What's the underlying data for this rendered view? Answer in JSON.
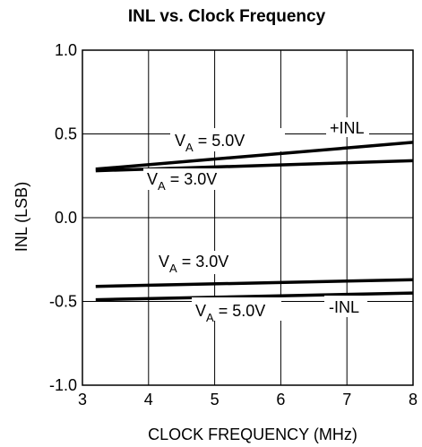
{
  "chart_data": {
    "type": "line",
    "title": "INL vs. Clock Frequency",
    "xlabel": "CLOCK FREQUENCY (MHz)",
    "ylabel": "INL (LSB)",
    "xlim": [
      3,
      8
    ],
    "ylim": [
      -1.0,
      1.0
    ],
    "x_ticks": [
      "3",
      "4",
      "5",
      "6",
      "7",
      "8"
    ],
    "y_ticks": [
      "1.0",
      "0.5",
      "0.0",
      "-0.5",
      "-1.0"
    ],
    "grid": true,
    "series": [
      {
        "name": "+INL, VA = 5.0V",
        "x": [
          3.2,
          8.0
        ],
        "y": [
          0.29,
          0.45
        ]
      },
      {
        "name": "+INL, VA = 3.0V",
        "x": [
          3.2,
          8.0
        ],
        "y": [
          0.28,
          0.34
        ]
      },
      {
        "name": "-INL, VA = 3.0V",
        "x": [
          3.2,
          8.0
        ],
        "y": [
          -0.41,
          -0.37
        ]
      },
      {
        "name": "-INL, VA = 5.0V",
        "x": [
          3.2,
          8.0
        ],
        "y": [
          -0.49,
          -0.45
        ]
      }
    ],
    "annotations": {
      "pos_inl": "+INL",
      "neg_inl": "-INL",
      "va_pos_5": {
        "main": "V",
        "sub": "A",
        "rest": " = 5.0V"
      },
      "va_pos_3": {
        "main": "V",
        "sub": "A",
        "rest": " = 3.0V"
      },
      "va_neg_3": {
        "main": "V",
        "sub": "A",
        "rest": " = 3.0V"
      },
      "va_neg_5": {
        "main": "V",
        "sub": "A",
        "rest": " = 5.0V"
      }
    }
  }
}
